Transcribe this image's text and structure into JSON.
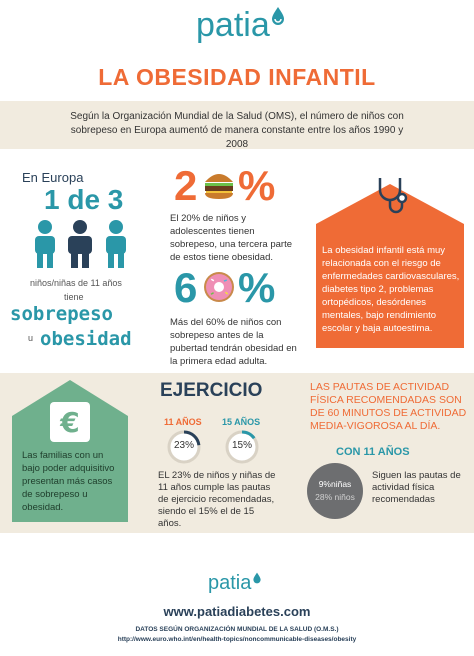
{
  "header": {
    "logo_text": "patia",
    "title": "LA OBESIDAD INFANTIL"
  },
  "intro": {
    "text": "Según la Organización Mundial de la Salud (OMS), el número de niños con sobrepeso en Europa aumentó de manera constante entre los años 1990 y 2008"
  },
  "europe": {
    "label": "En Europa",
    "ratio": "1 de 3",
    "caption": "niños/niñas de 11 años",
    "tiene": "tiene",
    "sobrepeso": "sobrepeso",
    "u": "u",
    "obesidad": "obesidad"
  },
  "stat20": {
    "big_digit": "2",
    "percent": "%",
    "icon": "burger-icon",
    "text": "El 20% de niños y adolescentes tienen sobrepeso, una tercera parte de estos tiene obesidad."
  },
  "stat60": {
    "big_digit": "6",
    "percent": "%",
    "icon": "donut-icon",
    "text": "Más del 60% de niños con sobrepeso antes de la pubertad tendrán obesidad en la primera edad adulta."
  },
  "risk": {
    "icon": "stethoscope-icon",
    "text": "La obesidad infantil está muy relacionada con el riesgo de enfermedades cardiovasculares, diabetes tipo 2, problemas ortopédicos, desórdenes mentales, bajo rendimiento escolar y baja autoestima."
  },
  "families": {
    "icon": "euro-icon",
    "text": "Las familias con un bajo poder adquisitivo presentan más casos de sobrepeso u obesidad."
  },
  "exercise": {
    "title": "EJERCICIO",
    "age11_label": "11 AÑOS",
    "age11_value": "23%",
    "age11_fraction": 0.23,
    "age15_label": "15 AÑOS",
    "age15_value": "15%",
    "age15_fraction": 0.15,
    "text": "EL 23% de niños y niñas de 11 años  cumple las pautas de ejercicio recomendadas, siendo el 15% el de 15 años."
  },
  "recommend": {
    "text": "LAS PAUTAS DE ACTIVIDAD FÍSICA RECOMENDADAS SON DE 60 MINUTOS DE ACTIVIDAD MEDIA-VIGOROSA AL DÍA.",
    "sub_label": "CON 11 AÑOS",
    "pie_top": "9%niñas",
    "pie_bottom": "28% niños",
    "side_text": "Siguen las pautas de actividad física recomendadas"
  },
  "footer": {
    "logo_text": "patia",
    "url": "www.patiadiabetes.com",
    "source_line1": "DATOS SEGÚN ORGANIZACIÓN MUNDIAL DE LA SALUD (O.M.S.)",
    "source_line2": "http://www.euro.who.int/en/health-topics/noncommunicable-diseases/obesity"
  },
  "colors": {
    "teal": "#2a97a8",
    "orange": "#ef6b36",
    "navy": "#2a4159",
    "beige": "#f1ebdf",
    "green": "#6fb08d",
    "gray": "#6d6e70"
  }
}
